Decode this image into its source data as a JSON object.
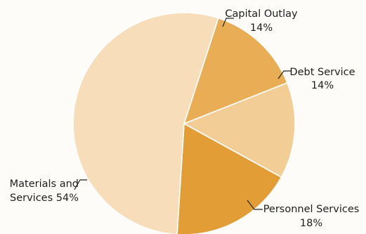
{
  "chart_data": {
    "type": "pie",
    "slices": [
      {
        "label_lines": [
          "Capital Outlay",
          "14%"
        ],
        "value": 14,
        "color": "#e9ae55"
      },
      {
        "label_lines": [
          "Debt Service",
          "14%"
        ],
        "value": 14,
        "color": "#f3cd96"
      },
      {
        "label_lines": [
          "Personnel Services",
          "18%"
        ],
        "value": 18,
        "color": "#e39d37"
      },
      {
        "label_lines": [
          "Materials and",
          "Services 54%"
        ],
        "value": 54,
        "color": "#f8ddba"
      }
    ],
    "start_angle_deg": -72,
    "direction": "clockwise"
  }
}
